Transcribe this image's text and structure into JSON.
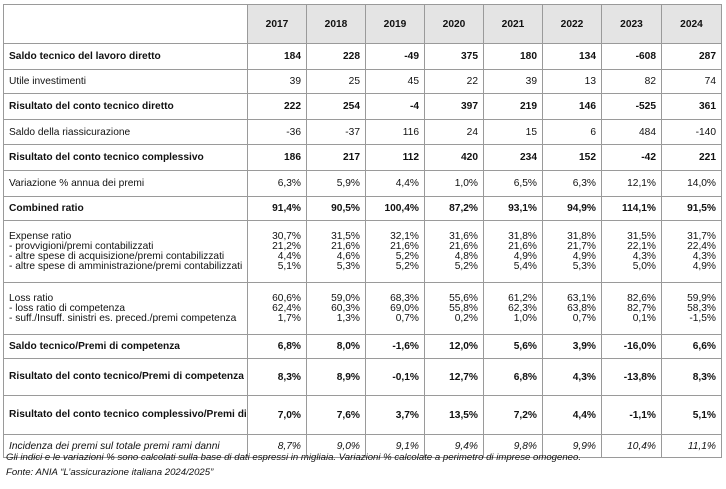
{
  "table": {
    "years": [
      "2017",
      "2018",
      "2019",
      "2020",
      "2021",
      "2022",
      "2023",
      "2024"
    ],
    "rows": [
      {
        "style": "bold",
        "height": 26,
        "labels": [
          "Saldo tecnico del lavoro diretto"
        ],
        "values": [
          [
            "184"
          ],
          [
            "228"
          ],
          [
            "-49"
          ],
          [
            "375"
          ],
          [
            "180"
          ],
          [
            "134"
          ],
          [
            "-608"
          ],
          [
            "287"
          ]
        ]
      },
      {
        "style": "normal",
        "height": 24,
        "labels": [
          "Utile investimenti"
        ],
        "values": [
          [
            "39"
          ],
          [
            "25"
          ],
          [
            "45"
          ],
          [
            "22"
          ],
          [
            "39"
          ],
          [
            "13"
          ],
          [
            "82"
          ],
          [
            "74"
          ]
        ]
      },
      {
        "style": "bold",
        "height": 26,
        "labels": [
          "Risultato del conto tecnico diretto"
        ],
        "values": [
          [
            "222"
          ],
          [
            "254"
          ],
          [
            "-4"
          ],
          [
            "397"
          ],
          [
            "219"
          ],
          [
            "146"
          ],
          [
            "-525"
          ],
          [
            "361"
          ]
        ]
      },
      {
        "style": "normal",
        "height": 25,
        "labels": [
          "Saldo della riassicurazione"
        ],
        "values": [
          [
            "-36"
          ],
          [
            "-37"
          ],
          [
            "116"
          ],
          [
            "24"
          ],
          [
            "15"
          ],
          [
            "6"
          ],
          [
            "484"
          ],
          [
            "-140"
          ]
        ]
      },
      {
        "style": "bold",
        "height": 26,
        "labels": [
          "Risultato del conto tecnico complessivo"
        ],
        "values": [
          [
            "186"
          ],
          [
            "217"
          ],
          [
            "112"
          ],
          [
            "420"
          ],
          [
            "234"
          ],
          [
            "152"
          ],
          [
            "-42"
          ],
          [
            "221"
          ]
        ]
      },
      {
        "style": "normal",
        "height": 26,
        "labels": [
          "Variazione % annua dei premi"
        ],
        "values": [
          [
            "6,3%"
          ],
          [
            "5,9%"
          ],
          [
            "4,4%"
          ],
          [
            "1,0%"
          ],
          [
            "6,5%"
          ],
          [
            "6,3%"
          ],
          [
            "12,1%"
          ],
          [
            "14,0%"
          ]
        ]
      },
      {
        "style": "bold",
        "height": 24,
        "labels": [
          "Combined ratio"
        ],
        "values": [
          [
            "91,4%"
          ],
          [
            "90,5%"
          ],
          [
            "100,4%"
          ],
          [
            "87,2%"
          ],
          [
            "93,1%"
          ],
          [
            "94,9%"
          ],
          [
            "114,1%"
          ],
          [
            "91,5%"
          ]
        ]
      },
      {
        "style": "multi",
        "height": 62,
        "labels": [
          "Expense ratio",
          "- provvigioni/premi contabilizzati",
          "- altre spese di acquisizione/premi contabilizzati",
          "- altre spese di amministrazione/premi contabilizzati"
        ],
        "values": [
          [
            "30,7%",
            "21,2%",
            "4,4%",
            "5,1%"
          ],
          [
            "31,5%",
            "21,6%",
            "4,6%",
            "5,3%"
          ],
          [
            "32,1%",
            "21,6%",
            "5,2%",
            "5,2%"
          ],
          [
            "31,6%",
            "21,6%",
            "4,8%",
            "5,2%"
          ],
          [
            "31,8%",
            "21,6%",
            "4,9%",
            "5,4%"
          ],
          [
            "31,8%",
            "21,7%",
            "4,9%",
            "5,3%"
          ],
          [
            "31,5%",
            "22,1%",
            "4,3%",
            "5,0%"
          ],
          [
            "31,7%",
            "22,4%",
            "4,3%",
            "4,9%"
          ]
        ]
      },
      {
        "style": "multi",
        "height": 52,
        "labels": [
          "Loss ratio",
          "- loss ratio di competenza",
          "- suff./Insuff. sinistri es. preced./premi competenza"
        ],
        "values": [
          [
            "60,6%",
            "62,4%",
            "1,7%"
          ],
          [
            "59,0%",
            "60,3%",
            "1,3%"
          ],
          [
            "68,3%",
            "69,0%",
            "0,7%"
          ],
          [
            "55,6%",
            "55,8%",
            "0,2%"
          ],
          [
            "61,2%",
            "62,3%",
            "1,0%"
          ],
          [
            "63,1%",
            "63,8%",
            "0,7%"
          ],
          [
            "82,6%",
            "82,7%",
            "0,1%"
          ],
          [
            "59,9%",
            "58,3%",
            "-1,5%"
          ]
        ]
      },
      {
        "style": "bold",
        "height": 24,
        "labels": [
          "Saldo tecnico/Premi di competenza"
        ],
        "values": [
          [
            "6,8%"
          ],
          [
            "8,0%"
          ],
          [
            "-1,6%"
          ],
          [
            "12,0%"
          ],
          [
            "5,6%"
          ],
          [
            "3,9%"
          ],
          [
            "-16,0%"
          ],
          [
            "6,6%"
          ]
        ]
      },
      {
        "style": "bold-wrap",
        "height": 37,
        "labels": [
          "Risultato del conto tecnico/Premi di competenza"
        ],
        "values": [
          [
            "8,3%"
          ],
          [
            "8,9%"
          ],
          [
            "-0,1%"
          ],
          [
            "12,7%"
          ],
          [
            "6,8%"
          ],
          [
            "4,3%"
          ],
          [
            "-13,8%"
          ],
          [
            "8,3%"
          ]
        ]
      },
      {
        "style": "bold-wrap",
        "height": 39,
        "labels": [
          "Risultato del conto tecnico complessivo/Premi di competenza"
        ],
        "values": [
          [
            "7,0%"
          ],
          [
            "7,6%"
          ],
          [
            "3,7%"
          ],
          [
            "13,5%"
          ],
          [
            "7,2%"
          ],
          [
            "4,4%"
          ],
          [
            "-1,1%"
          ],
          [
            "5,1%"
          ]
        ]
      },
      {
        "style": "italic",
        "height": 23,
        "labels": [
          "Incidenza dei premi sul totale premi rami danni"
        ],
        "values": [
          [
            "8,7%"
          ],
          [
            "9,0%"
          ],
          [
            "9,1%"
          ],
          [
            "9,4%"
          ],
          [
            "9,8%"
          ],
          [
            "9,9%"
          ],
          [
            "10,4%"
          ],
          [
            "11,1%"
          ]
        ]
      }
    ]
  },
  "notes": {
    "line1": "Gli indici e le variazioni % sono calcolati sulla base di dati espressi in migliaia. Variazioni % calcolate a perimetro di imprese omogeneo.",
    "line2": "Fonte: ANIA “L’assicurazione italiana 2024/2025”"
  }
}
